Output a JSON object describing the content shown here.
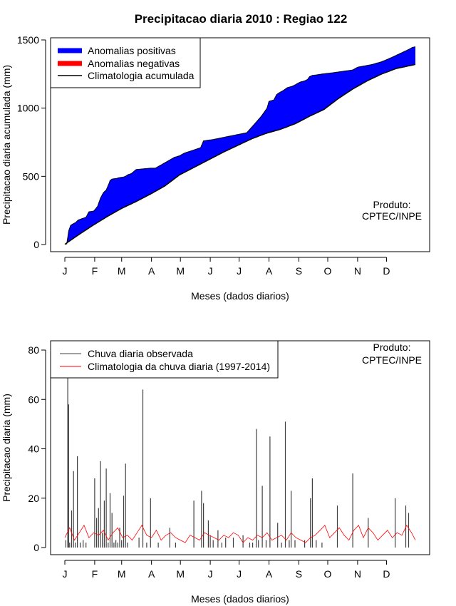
{
  "colors": {
    "positive": "#0000ff",
    "negative": "#ff0000",
    "climatology_line": "#000000",
    "observed_bars": "#404040",
    "climatology_daily": "#ff0000"
  },
  "chart_data": [
    {
      "type": "area",
      "title": "Precipitacao diaria 2010 : Regiao 122",
      "xlabel": "Meses (dados diarios)",
      "ylabel": "Precipitacao diaria acumulada (mm)",
      "month_ticks": [
        "J",
        "F",
        "M",
        "A",
        "M",
        "J",
        "J",
        "A",
        "S",
        "O",
        "N",
        "D"
      ],
      "xlim": [
        1,
        365
      ],
      "ylim": [
        0,
        1500
      ],
      "yticks": [
        0,
        500,
        1000,
        1500
      ],
      "legend_position": "top-left",
      "legend": [
        "Anomalias positivas",
        "Anomalias negativas",
        "Climatologia acumulada"
      ],
      "annotation": [
        "Produto:",
        "CPTEC/INPE"
      ],
      "observed_accumulated": {
        "day": [
          1,
          3,
          5,
          7,
          9,
          12,
          15,
          19,
          23,
          26,
          31,
          35,
          38,
          41,
          44,
          47,
          48,
          50,
          55,
          57,
          62,
          64,
          66,
          70,
          75,
          90,
          95,
          115,
          120,
          125,
          142,
          145,
          155,
          176,
          190,
          200,
          205,
          211,
          213,
          218,
          221,
          223,
          228,
          232,
          237,
          240,
          245,
          250,
          253,
          255,
          258,
          262,
          268,
          280,
          290,
          300,
          305,
          320,
          330,
          340,
          349,
          358,
          362,
          365
        ],
        "value": [
          3,
          5,
          100,
          140,
          150,
          160,
          180,
          190,
          200,
          240,
          245,
          280,
          340,
          380,
          400,
          450,
          470,
          480,
          485,
          490,
          495,
          500,
          510,
          520,
          550,
          560,
          560,
          640,
          650,
          670,
          710,
          760,
          770,
          800,
          820,
          900,
          940,
          1000,
          1050,
          1060,
          1100,
          1110,
          1130,
          1150,
          1160,
          1170,
          1190,
          1200,
          1210,
          1230,
          1240,
          1243,
          1250,
          1260,
          1270,
          1280,
          1300,
          1320,
          1340,
          1370,
          1400,
          1430,
          1445,
          1450
        ]
      },
      "climatology_accumulated": {
        "day": [
          1,
          15,
          30,
          45,
          60,
          75,
          90,
          105,
          120,
          135,
          150,
          165,
          180,
          195,
          210,
          225,
          240,
          255,
          270,
          285,
          300,
          315,
          330,
          345,
          365
        ],
        "value": [
          2,
          70,
          140,
          205,
          265,
          315,
          370,
          430,
          510,
          565,
          620,
          675,
          725,
          775,
          815,
          845,
          885,
          940,
          990,
          1070,
          1140,
          1200,
          1250,
          1290,
          1320
        ]
      }
    },
    {
      "type": "bar",
      "xlabel": "Meses (dados diarios)",
      "ylabel": "Precipitacao diaria (mm)",
      "month_ticks": [
        "J",
        "F",
        "M",
        "A",
        "M",
        "J",
        "J",
        "A",
        "S",
        "O",
        "N",
        "D"
      ],
      "xlim": [
        1,
        365
      ],
      "ylim": [
        0,
        80
      ],
      "yticks": [
        0,
        20,
        40,
        60,
        80
      ],
      "legend_position": "top-left",
      "legend": [
        "Chuva diaria observada",
        "Climatologia da chuva diaria (1997-2014)"
      ],
      "annotation": [
        "Produto:",
        "CPTEC/INPE"
      ],
      "observed_daily": {
        "day": [
          2,
          4,
          5,
          6,
          8,
          10,
          12,
          14,
          17,
          20,
          23,
          32,
          34,
          36,
          38,
          40,
          42,
          44,
          46,
          48,
          50,
          52,
          54,
          56,
          58,
          60,
          62,
          64,
          66,
          78,
          82,
          86,
          90,
          98,
          110,
          116,
          135,
          143,
          145,
          150,
          152,
          155,
          160,
          164,
          168,
          176,
          186,
          193,
          196,
          200,
          202,
          206,
          210,
          214,
          222,
          226,
          230,
          234,
          236,
          240,
          250,
          256,
          258,
          262,
          268,
          284,
          300,
          316,
          344,
          355,
          358
        ],
        "value": [
          3,
          69,
          58,
          2,
          15,
          31,
          2,
          37,
          2,
          3,
          2,
          28,
          12,
          16,
          35,
          6,
          19,
          32,
          2,
          22,
          14,
          2,
          3,
          2,
          8,
          3,
          21,
          34,
          2,
          4,
          64,
          2,
          20,
          2,
          8,
          2,
          19,
          23,
          18,
          11,
          5,
          3,
          7,
          2,
          4,
          4,
          5,
          2,
          2,
          48,
          3,
          25,
          3,
          45,
          10,
          2,
          51,
          3,
          23,
          3,
          3,
          20,
          28,
          3,
          2,
          17,
          30,
          12,
          20,
          17,
          14
        ]
      },
      "climatology_daily": {
        "day": [
          1,
          6,
          11,
          16,
          21,
          26,
          31,
          36,
          41,
          46,
          51,
          56,
          61,
          66,
          71,
          76,
          81,
          86,
          91,
          96,
          101,
          106,
          111,
          116,
          121,
          126,
          131,
          136,
          141,
          146,
          151,
          156,
          161,
          166,
          171,
          176,
          181,
          186,
          191,
          196,
          201,
          206,
          211,
          216,
          221,
          226,
          231,
          236,
          241,
          246,
          251,
          256,
          261,
          266,
          271,
          276,
          281,
          286,
          291,
          296,
          301,
          306,
          311,
          316,
          321,
          326,
          331,
          336,
          341,
          346,
          351,
          356,
          361,
          365
        ],
        "value": [
          4,
          8,
          3,
          6,
          9,
          4,
          6,
          5,
          7,
          3,
          6,
          8,
          4,
          5,
          3,
          6,
          9,
          5,
          4,
          7,
          3,
          5,
          6,
          4,
          3,
          2,
          5,
          4,
          3,
          6,
          5,
          4,
          3,
          5,
          4,
          6,
          5,
          2,
          4,
          3,
          5,
          4,
          6,
          3,
          4,
          5,
          3,
          6,
          4,
          3,
          2,
          4,
          5,
          7,
          9,
          4,
          6,
          8,
          5,
          3,
          7,
          9,
          4,
          8,
          6,
          3,
          5,
          7,
          4,
          6,
          5,
          9,
          6,
          3
        ]
      }
    }
  ]
}
